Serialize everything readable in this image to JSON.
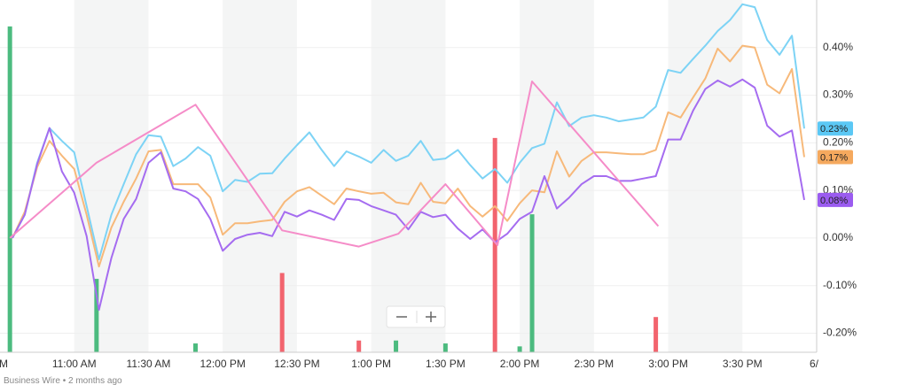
{
  "chart_data": {
    "type": "line",
    "xlim": [
      630,
      960
    ],
    "ylim": [
      -0.24,
      0.5
    ],
    "xticks": [
      {
        "value": 630,
        "label": "AM"
      },
      {
        "value": 660,
        "label": "11:00 AM"
      },
      {
        "value": 690,
        "label": "11:30 AM"
      },
      {
        "value": 720,
        "label": "12:00 PM"
      },
      {
        "value": 750,
        "label": "12:30 PM"
      },
      {
        "value": 780,
        "label": "1:00 PM"
      },
      {
        "value": 810,
        "label": "1:30 PM"
      },
      {
        "value": 840,
        "label": "2:00 PM"
      },
      {
        "value": 870,
        "label": "2:30 PM"
      },
      {
        "value": 900,
        "label": "3:00 PM"
      },
      {
        "value": 930,
        "label": "3:30 PM"
      },
      {
        "value": 960,
        "label": "6/"
      }
    ],
    "yticks": [
      {
        "value": 0.4,
        "label": "0.40%"
      },
      {
        "value": 0.3,
        "label": "0.30%"
      },
      {
        "value": 0.2,
        "label": "0.20%"
      },
      {
        "value": 0.1,
        "label": "0.10%"
      },
      {
        "value": 0,
        "label": "0.00%"
      },
      {
        "value": -0.1,
        "label": "-0.10%"
      },
      {
        "value": -0.2,
        "label": "-0.20%"
      }
    ],
    "grid": true,
    "x": [
      635,
      640,
      645,
      650,
      655,
      660,
      665,
      670,
      675,
      680,
      685,
      690,
      695,
      700,
      705,
      710,
      715,
      720,
      725,
      730,
      735,
      740,
      745,
      750,
      755,
      760,
      765,
      770,
      775,
      780,
      785,
      790,
      795,
      800,
      805,
      810,
      815,
      820,
      825,
      830,
      835,
      840,
      845,
      850,
      855,
      860,
      865,
      870,
      875,
      880,
      885,
      890,
      895,
      900,
      905,
      910,
      915,
      920,
      925,
      930,
      935,
      940,
      945,
      950,
      955
    ],
    "series": [
      {
        "color": "#7dd3f5",
        "badge": "#5bc8f5",
        "values": [
          0,
          0.049,
          0.158,
          0.231,
          0.204,
          0.18,
          0.067,
          -0.045,
          0.049,
          0.113,
          0.176,
          0.216,
          0.213,
          0.151,
          0.167,
          0.191,
          0.173,
          0.098,
          0.122,
          0.118,
          0.135,
          0.136,
          0.167,
          0.195,
          0.222,
          0.185,
          0.151,
          0.182,
          0.171,
          0.158,
          0.185,
          0.162,
          0.173,
          0.204,
          0.164,
          0.167,
          0.185,
          0.153,
          0.125,
          0.145,
          0.116,
          0.158,
          0.189,
          0.198,
          0.285,
          0.235,
          0.253,
          0.258,
          0.253,
          0.245,
          0.249,
          0.253,
          0.276,
          0.353,
          0.347,
          0.376,
          0.404,
          0.435,
          0.458,
          0.491,
          0.485,
          0.416,
          0.385,
          0.425,
          0.23
        ],
        "value_labels": [
          null,
          null,
          null,
          null,
          null,
          null,
          null,
          null,
          null,
          null,
          null,
          null,
          null,
          null,
          null,
          null,
          null,
          null,
          null,
          null,
          null,
          null,
          null,
          null,
          null,
          null,
          null,
          null,
          null,
          null,
          null,
          null,
          null,
          null,
          null,
          null,
          null,
          null,
          null,
          null,
          null,
          null,
          null,
          null,
          null,
          null,
          null,
          null,
          null,
          null,
          null,
          null,
          null,
          null,
          null,
          null,
          null,
          null,
          null,
          null,
          null,
          null,
          null,
          null,
          "0.23%"
        ]
      },
      {
        "color": "#f7b97a",
        "badge": "#f5a95e",
        "values": [
          0,
          0.055,
          0.149,
          0.204,
          0.173,
          0.145,
          0.049,
          -0.06,
          0.022,
          0.076,
          0.125,
          0.182,
          0.185,
          0.113,
          0.113,
          0.113,
          0.085,
          0.007,
          0.031,
          0.031,
          0.035,
          0.038,
          0.076,
          0.098,
          0.107,
          0.089,
          0.071,
          0.104,
          0.098,
          0.093,
          0.095,
          0.075,
          0.071,
          0.116,
          0.076,
          0.073,
          0.104,
          0.067,
          0.045,
          0.067,
          0.036,
          0.073,
          0.1,
          0.096,
          0.182,
          0.129,
          0.162,
          0.18,
          0.18,
          0.178,
          0.176,
          0.176,
          0.185,
          0.264,
          0.253,
          0.295,
          0.335,
          0.398,
          0.371,
          0.404,
          0.4,
          0.322,
          0.304,
          0.355,
          0.17
        ],
        "value_labels": [
          null,
          null,
          null,
          null,
          null,
          null,
          null,
          null,
          null,
          null,
          null,
          null,
          null,
          null,
          null,
          null,
          null,
          null,
          null,
          null,
          null,
          null,
          null,
          null,
          null,
          null,
          null,
          null,
          null,
          null,
          null,
          null,
          null,
          null,
          null,
          null,
          null,
          null,
          null,
          null,
          null,
          null,
          null,
          null,
          null,
          null,
          null,
          null,
          null,
          null,
          null,
          null,
          null,
          null,
          null,
          null,
          null,
          null,
          null,
          null,
          null,
          null,
          null,
          null,
          "0.17%"
        ]
      },
      {
        "color": "#a56cf0",
        "badge": "#9b5cf0",
        "values": [
          0,
          0.049,
          0.155,
          0.231,
          0.14,
          0.095,
          0.004,
          -0.151,
          -0.042,
          0.04,
          0.082,
          0.158,
          0.18,
          0.104,
          0.098,
          0.082,
          0.04,
          -0.027,
          -0.002,
          0.007,
          0.011,
          0.004,
          0.055,
          0.045,
          0.058,
          0.049,
          0.038,
          0.082,
          0.08,
          0.067,
          0.058,
          0.049,
          0.018,
          0.055,
          0.044,
          0.049,
          0.02,
          -0.002,
          0.018,
          -0.009,
          0.009,
          0.04,
          0.055,
          0.13,
          0.062,
          0.085,
          0.113,
          0.13,
          0.13,
          0.12,
          0.12,
          0.125,
          0.13,
          0.207,
          0.207,
          0.267,
          0.313,
          0.331,
          0.318,
          0.333,
          0.316,
          0.236,
          0.213,
          0.226,
          0.08
        ],
        "value_labels": [
          null,
          null,
          null,
          null,
          null,
          null,
          null,
          null,
          null,
          null,
          null,
          null,
          null,
          null,
          null,
          null,
          null,
          null,
          null,
          null,
          null,
          null,
          null,
          null,
          null,
          null,
          null,
          null,
          null,
          null,
          null,
          null,
          null,
          null,
          null,
          null,
          null,
          null,
          null,
          null,
          null,
          null,
          null,
          null,
          null,
          null,
          null,
          null,
          null,
          null,
          null,
          null,
          null,
          null,
          null,
          null,
          null,
          null,
          null,
          null,
          null,
          null,
          null,
          null,
          "0.08%"
        ]
      },
      {
        "color": "#f58cc8",
        "x": [
          634,
          669,
          709,
          744,
          775,
          791,
          810,
          831,
          845,
          896
        ],
        "values": [
          0,
          0.158,
          0.28,
          0.016,
          -0.018,
          0.009,
          0.113,
          -0.015,
          0.329,
          0.025
        ]
      }
    ],
    "volume": {
      "type": "bar",
      "axis": "y2",
      "y2lim": [
        0,
        120
      ],
      "x": [
        634,
        669,
        709,
        744,
        775,
        790,
        810,
        830,
        840,
        845,
        895
      ],
      "values": [
        111,
        25,
        3,
        27,
        4,
        4,
        3,
        73,
        2,
        47,
        12
      ],
      "colors": [
        "#4cbb7f",
        "#4cbb7f",
        "#4cbb7f",
        "#f2646e",
        "#f2646e",
        "#4cbb7f",
        "#4cbb7f",
        "#f2646e",
        "#4cbb7f",
        "#4cbb7f",
        "#f2646e"
      ]
    }
  },
  "footer": {
    "source": "Business Wire",
    "separator": "•",
    "age": "2 months ago"
  }
}
